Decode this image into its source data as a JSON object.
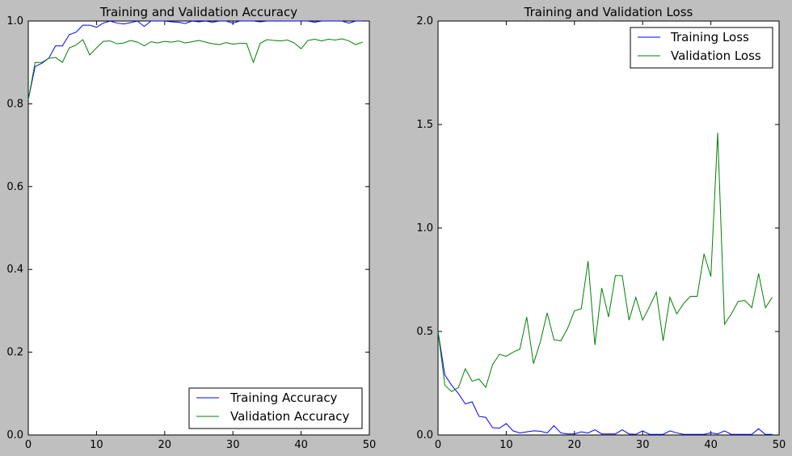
{
  "colors": {
    "training": "#0000ff",
    "validation": "#008000",
    "figure_bg": "#bfbfbf",
    "axes_bg": "#ffffff"
  },
  "chart_data": [
    {
      "type": "line",
      "title": "Training and Validation Accuracy",
      "xlabel": "",
      "ylabel": "",
      "xlim": [
        0,
        50
      ],
      "ylim": [
        0,
        1.0
      ],
      "xticks": [
        0,
        10,
        20,
        30,
        40,
        50
      ],
      "xtick_labels": [
        "0",
        "10",
        "20",
        "30",
        "40",
        "50"
      ],
      "yticks": [
        0,
        0.2,
        0.4,
        0.6,
        0.8,
        1.0
      ],
      "ytick_labels": [
        "0.0",
        "0.2",
        "0.4",
        "0.6",
        "0.8",
        "1.0"
      ],
      "grid": false,
      "legend_position": "lower-right",
      "x": [
        0,
        1,
        2,
        3,
        4,
        5,
        6,
        7,
        8,
        9,
        10,
        11,
        12,
        13,
        14,
        15,
        16,
        17,
        18,
        19,
        20,
        21,
        22,
        23,
        24,
        25,
        26,
        27,
        28,
        29,
        30,
        31,
        32,
        33,
        34,
        35,
        36,
        37,
        38,
        39,
        40,
        41,
        42,
        43,
        44,
        45,
        46,
        47,
        48,
        49
      ],
      "series": [
        {
          "name": "Training Accuracy",
          "color": "#0000ff",
          "values": [
            0.81,
            0.89,
            0.898,
            0.91,
            0.94,
            0.94,
            0.967,
            0.973,
            0.99,
            0.99,
            0.985,
            0.995,
            1.0,
            0.995,
            0.993,
            0.996,
            1.0,
            0.987,
            1.0,
            1.0,
            1.0,
            0.998,
            0.997,
            0.994,
            1.0,
            0.998,
            1.0,
            0.997,
            1.0,
            1.0,
            0.995,
            1.0,
            1.0,
            1.0,
            0.998,
            1.0,
            1.0,
            1.0,
            1.0,
            1.0,
            1.0,
            1.0,
            0.997,
            1.0,
            1.0,
            1.0,
            1.0,
            0.995,
            1.0,
            1.0
          ]
        },
        {
          "name": "Validation Accuracy",
          "color": "#008000",
          "values": [
            0.81,
            0.9,
            0.9,
            0.91,
            0.912,
            0.9,
            0.935,
            0.942,
            0.955,
            0.918,
            0.935,
            0.951,
            0.952,
            0.945,
            0.947,
            0.953,
            0.949,
            0.94,
            0.95,
            0.947,
            0.951,
            0.949,
            0.952,
            0.947,
            0.95,
            0.953,
            0.949,
            0.945,
            0.943,
            0.948,
            0.944,
            0.946,
            0.946,
            0.9,
            0.946,
            0.955,
            0.953,
            0.952,
            0.954,
            0.947,
            0.933,
            0.953,
            0.956,
            0.952,
            0.956,
            0.954,
            0.957,
            0.952,
            0.943,
            0.949
          ]
        }
      ]
    },
    {
      "type": "line",
      "title": "Training and Validation Loss",
      "xlabel": "",
      "ylabel": "",
      "xlim": [
        0,
        50
      ],
      "ylim": [
        0,
        2.0
      ],
      "xticks": [
        0,
        10,
        20,
        30,
        40,
        50
      ],
      "xtick_labels": [
        "0",
        "10",
        "20",
        "30",
        "40",
        "50"
      ],
      "yticks": [
        0,
        0.5,
        1.0,
        1.5,
        2.0
      ],
      "ytick_labels": [
        "0.0",
        "0.5",
        "1.0",
        "1.5",
        "2.0"
      ],
      "grid": false,
      "legend_position": "upper-right",
      "x": [
        0,
        1,
        2,
        3,
        4,
        5,
        6,
        7,
        8,
        9,
        10,
        11,
        12,
        13,
        14,
        15,
        16,
        17,
        18,
        19,
        20,
        21,
        22,
        23,
        24,
        25,
        26,
        27,
        28,
        29,
        30,
        31,
        32,
        33,
        34,
        35,
        36,
        37,
        38,
        39,
        40,
        41,
        42,
        43,
        44,
        45,
        46,
        47,
        48,
        49
      ],
      "series": [
        {
          "name": "Training Loss",
          "color": "#0000ff",
          "values": [
            0.5,
            0.29,
            0.24,
            0.2,
            0.15,
            0.16,
            0.09,
            0.085,
            0.035,
            0.033,
            0.055,
            0.02,
            0.01,
            0.015,
            0.02,
            0.018,
            0.01,
            0.045,
            0.01,
            0.005,
            0.005,
            0.015,
            0.01,
            0.025,
            0.005,
            0.005,
            0.005,
            0.025,
            0.005,
            0.003,
            0.02,
            0.003,
            0.003,
            0.003,
            0.02,
            0.01,
            0.003,
            0.003,
            0.003,
            0.003,
            0.01,
            0.005,
            0.02,
            0.003,
            0.003,
            0.003,
            0.003,
            0.03,
            0.003,
            0.003
          ]
        },
        {
          "name": "Validation Loss",
          "color": "#008000",
          "values": [
            0.5,
            0.24,
            0.21,
            0.23,
            0.32,
            0.26,
            0.27,
            0.23,
            0.34,
            0.39,
            0.38,
            0.4,
            0.415,
            0.57,
            0.345,
            0.45,
            0.59,
            0.46,
            0.455,
            0.515,
            0.6,
            0.61,
            0.84,
            0.435,
            0.71,
            0.57,
            0.77,
            0.77,
            0.555,
            0.665,
            0.555,
            0.62,
            0.69,
            0.455,
            0.665,
            0.585,
            0.635,
            0.67,
            0.67,
            0.875,
            0.765,
            1.46,
            0.535,
            0.585,
            0.645,
            0.65,
            0.615,
            0.78,
            0.615,
            0.665
          ]
        }
      ]
    }
  ]
}
